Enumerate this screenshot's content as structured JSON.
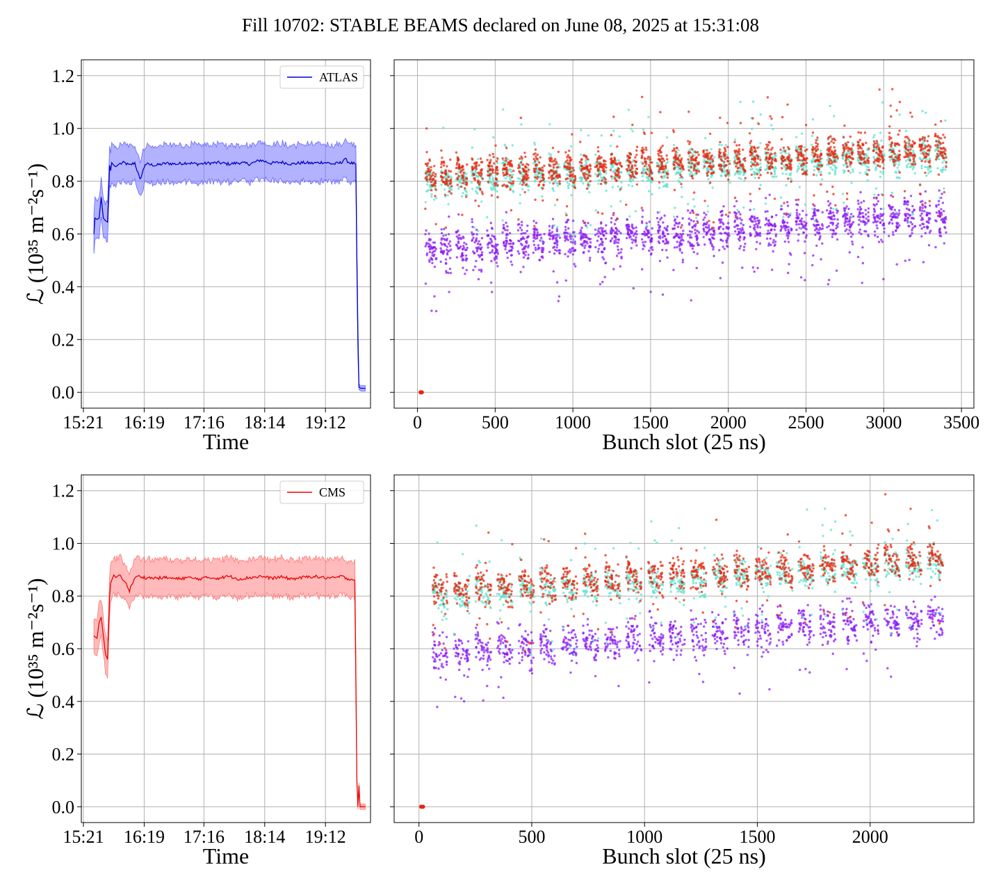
{
  "title": "Fill 10702: STABLE BEAMS declared on June 08, 2025 at 15:31:08",
  "colors": {
    "atlas": "#0000cc",
    "atlas_fill": "#6666ff",
    "cms": "#ee0000",
    "cms_fill": "#ff7777",
    "scatter_low": "#8b1cf6",
    "scatter_mid": "#5fe3cf",
    "scatter_high": "#e8280f",
    "grid": "#b0b0b0"
  },
  "chart_data": [
    {
      "id": "atlas-time",
      "type": "line",
      "xlabel": "Time",
      "ylabel": "ℒ (10³⁵ m⁻²s⁻¹)",
      "x_ticks": [
        "15:21",
        "16:19",
        "17:16",
        "18:14",
        "19:12"
      ],
      "x_tick_minutes": [
        921,
        979,
        1036,
        1094,
        1152
      ],
      "xlim": [
        919,
        1195
      ],
      "ylim": [
        -0.06,
        1.26
      ],
      "y_ticks": [
        0.0,
        0.2,
        0.4,
        0.6,
        0.8,
        1.0,
        1.2
      ],
      "y_tick_labels": [
        "0.0",
        "0.2",
        "0.4",
        "0.6",
        "0.8",
        "1.0",
        "1.2"
      ],
      "legend": "top-right",
      "grid": true,
      "series": [
        {
          "name": "ATLAS",
          "x": [
            931,
            932,
            934,
            936,
            938,
            940,
            942,
            944,
            946,
            947,
            948,
            950,
            952,
            955,
            960,
            965,
            970,
            975,
            980,
            990,
            1000,
            1010,
            1020,
            1030,
            1040,
            1050,
            1060,
            1070,
            1080,
            1090,
            1100,
            1110,
            1120,
            1130,
            1140,
            1150,
            1160,
            1167,
            1170,
            1175,
            1181,
            1182,
            1183,
            1184,
            1186,
            1190
          ],
          "y": [
            0.6,
            0.66,
            0.655,
            0.66,
            0.74,
            0.66,
            0.65,
            0.645,
            0.86,
            0.84,
            0.87,
            0.86,
            0.855,
            0.865,
            0.87,
            0.86,
            0.87,
            0.805,
            0.865,
            0.86,
            0.868,
            0.865,
            0.87,
            0.865,
            0.868,
            0.87,
            0.865,
            0.87,
            0.865,
            0.88,
            0.868,
            0.872,
            0.865,
            0.87,
            0.868,
            0.872,
            0.865,
            0.87,
            0.885,
            0.87,
            0.865,
            0.5,
            0.2,
            0.02,
            0.015,
            0.015
          ],
          "band": 0.07
        }
      ]
    },
    {
      "id": "atlas-bunch",
      "type": "scatter",
      "xlabel": "Bunch slot (25 ns)",
      "xlim": [
        -150,
        3580
      ],
      "ylim": [
        -0.06,
        1.26
      ],
      "x_ticks": [
        0,
        500,
        1000,
        1500,
        2000,
        2500,
        3000,
        3500
      ],
      "grid": true,
      "extent": [
        50,
        3430
      ],
      "trains": 34,
      "groups": [
        {
          "name": "",
          "color_key": "scatter_low",
          "mean_start": 0.54,
          "mean_end": 0.67
        },
        {
          "name": "",
          "color_key": "scatter_mid",
          "mean_start": 0.8,
          "mean_end": 0.9
        },
        {
          "name": "",
          "color_key": "scatter_high",
          "mean_start": 0.82,
          "mean_end": 0.92
        }
      ],
      "zero_point": [
        20,
        0.0
      ]
    },
    {
      "id": "cms-time",
      "type": "line",
      "xlabel": "Time",
      "ylabel": "ℒ (10³⁵ m⁻²s⁻¹)",
      "x_ticks": [
        "15:21",
        "16:19",
        "17:16",
        "18:14",
        "19:12"
      ],
      "x_tick_minutes": [
        921,
        979,
        1036,
        1094,
        1152
      ],
      "xlim": [
        919,
        1195
      ],
      "ylim": [
        -0.06,
        1.26
      ],
      "y_ticks": [
        0.0,
        0.2,
        0.4,
        0.6,
        0.8,
        1.0,
        1.2
      ],
      "y_tick_labels": [
        "0.0",
        "0.2",
        "0.4",
        "0.6",
        "0.8",
        "1.0",
        "1.2"
      ],
      "legend": "top-right",
      "grid": true,
      "series": [
        {
          "name": "CMS",
          "x": [
            931,
            932,
            934,
            936,
            938,
            940,
            942,
            944,
            946,
            947,
            948,
            950,
            952,
            955,
            960,
            965,
            970,
            975,
            980,
            990,
            1000,
            1010,
            1020,
            1030,
            1040,
            1050,
            1060,
            1070,
            1080,
            1090,
            1100,
            1110,
            1120,
            1130,
            1140,
            1150,
            1160,
            1167,
            1170,
            1175,
            1180,
            1181,
            1182,
            1183,
            1184,
            1185,
            1186,
            1188,
            1190
          ],
          "y": [
            0.65,
            0.645,
            0.64,
            0.7,
            0.72,
            0.65,
            0.58,
            0.56,
            0.8,
            0.85,
            0.86,
            0.88,
            0.87,
            0.88,
            0.86,
            0.82,
            0.87,
            0.875,
            0.87,
            0.868,
            0.87,
            0.865,
            0.87,
            0.865,
            0.87,
            0.868,
            0.875,
            0.865,
            0.87,
            0.875,
            0.868,
            0.872,
            0.865,
            0.87,
            0.875,
            0.87,
            0.868,
            0.875,
            0.87,
            0.865,
            0.86,
            0.5,
            0.1,
            0.0,
            0.08,
            0.0,
            0.0,
            0.0,
            0.0
          ],
          "band": 0.07
        }
      ]
    },
    {
      "id": "cms-bunch",
      "type": "scatter",
      "xlabel": "Bunch slot (25 ns)",
      "xlim": [
        -110,
        2460
      ],
      "ylim": [
        -0.06,
        1.26
      ],
      "x_ticks": [
        0,
        500,
        1000,
        1500,
        2000
      ],
      "grid": true,
      "extent": [
        60,
        2350
      ],
      "trains": 24,
      "groups": [
        {
          "name": "",
          "color_key": "scatter_low",
          "mean_start": 0.58,
          "mean_end": 0.72
        },
        {
          "name": "",
          "color_key": "scatter_mid",
          "mean_start": 0.8,
          "mean_end": 0.92
        },
        {
          "name": "",
          "color_key": "scatter_high",
          "mean_start": 0.82,
          "mean_end": 0.94
        }
      ],
      "zero_point": [
        10,
        0.0
      ]
    }
  ]
}
